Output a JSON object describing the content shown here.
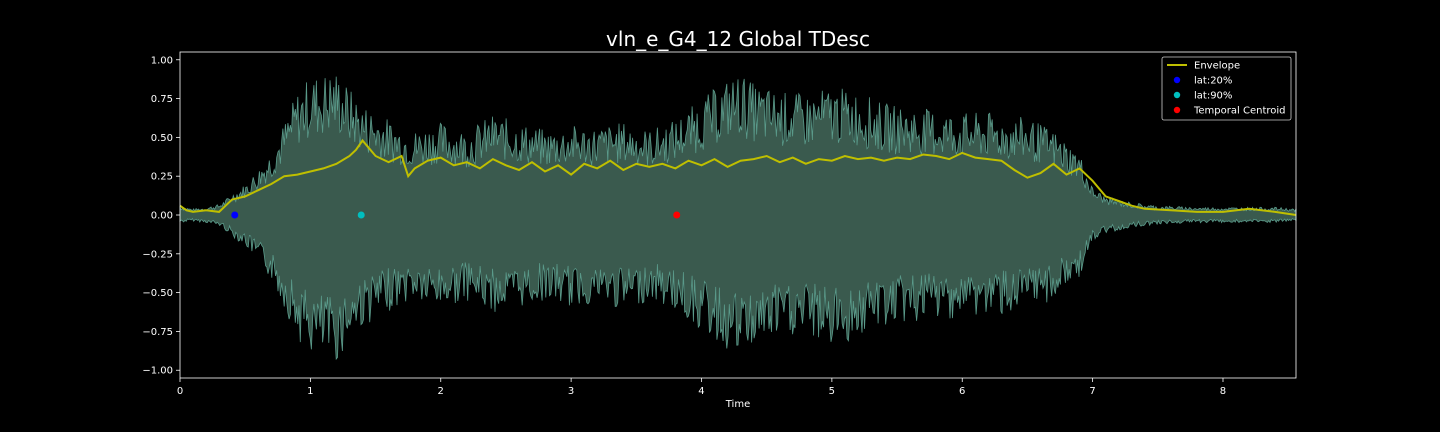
{
  "chart_data": {
    "type": "line",
    "title": "vln_e_G4_12 Global TDesc",
    "xlabel": "Time",
    "ylabel": "",
    "xlim": [
      0,
      8.56
    ],
    "ylim": [
      -1.05,
      1.05
    ],
    "x_ticks": [
      0,
      1,
      2,
      3,
      4,
      5,
      6,
      7,
      8
    ],
    "y_ticks": [
      1.0,
      0.75,
      0.5,
      0.25,
      0.0,
      -0.25,
      -0.5,
      -0.75,
      -1.0
    ],
    "x_tick_labels": [
      "0",
      "1",
      "2",
      "3",
      "4",
      "5",
      "6",
      "7",
      "8"
    ],
    "y_tick_labels": [
      "1.00",
      "0.75",
      "0.50",
      "0.25",
      "0.00",
      "−0.25",
      "−0.50",
      "−0.75",
      "−1.00"
    ],
    "grid": false,
    "legend_position": "top-right",
    "waveform": {
      "color": "#5a9a8a",
      "fill_color": "#3a5a4e",
      "t": [
        0,
        0.1,
        0.2,
        0.3,
        0.35,
        0.4,
        0.5,
        0.6,
        0.7,
        0.8,
        0.9,
        1.0,
        1.1,
        1.2,
        1.3,
        1.4,
        1.5,
        1.6,
        1.7,
        1.8,
        1.9,
        2.0,
        2.2,
        2.4,
        2.6,
        2.8,
        3.0,
        3.2,
        3.4,
        3.6,
        3.8,
        4.0,
        4.2,
        4.3,
        4.4,
        4.6,
        4.8,
        5.0,
        5.2,
        5.4,
        5.6,
        5.8,
        6.0,
        6.2,
        6.3,
        6.5,
        6.7,
        6.9,
        7.0,
        7.1,
        7.3,
        7.5,
        7.8,
        8.0,
        8.2,
        8.4,
        8.56
      ],
      "upper": [
        0.06,
        0.04,
        0.05,
        0.07,
        0.1,
        0.14,
        0.2,
        0.3,
        0.42,
        0.6,
        0.8,
        0.9,
        0.92,
        0.94,
        0.82,
        0.72,
        0.68,
        0.62,
        0.58,
        0.55,
        0.58,
        0.6,
        0.55,
        0.65,
        0.6,
        0.55,
        0.58,
        0.57,
        0.6,
        0.55,
        0.62,
        0.75,
        0.88,
        0.92,
        0.85,
        0.8,
        0.78,
        0.83,
        0.8,
        0.72,
        0.7,
        0.68,
        0.66,
        0.66,
        0.64,
        0.63,
        0.55,
        0.4,
        0.18,
        0.12,
        0.08,
        0.06,
        0.05,
        0.05,
        0.05,
        0.05,
        0.04
      ],
      "lower": [
        -0.05,
        -0.04,
        -0.05,
        -0.07,
        -0.1,
        -0.14,
        -0.2,
        -0.3,
        -0.42,
        -0.6,
        -0.8,
        -0.9,
        -0.93,
        -0.95,
        -0.82,
        -0.72,
        -0.68,
        -0.62,
        -0.58,
        -0.55,
        -0.6,
        -0.6,
        -0.55,
        -0.63,
        -0.6,
        -0.55,
        -0.6,
        -0.57,
        -0.62,
        -0.55,
        -0.62,
        -0.75,
        -0.88,
        -0.93,
        -0.85,
        -0.8,
        -0.78,
        -0.85,
        -0.8,
        -0.72,
        -0.7,
        -0.68,
        -0.66,
        -0.66,
        -0.64,
        -0.63,
        -0.55,
        -0.4,
        -0.18,
        -0.12,
        -0.08,
        -0.06,
        -0.05,
        -0.05,
        -0.05,
        -0.05,
        -0.04
      ]
    },
    "series": [
      {
        "name": "Envelope",
        "color": "#bfbf00",
        "x": [
          0,
          0.05,
          0.1,
          0.2,
          0.3,
          0.35,
          0.4,
          0.5,
          0.6,
          0.7,
          0.8,
          0.9,
          1.0,
          1.1,
          1.2,
          1.3,
          1.35,
          1.4,
          1.45,
          1.5,
          1.6,
          1.7,
          1.75,
          1.8,
          1.9,
          2.0,
          2.1,
          2.2,
          2.3,
          2.4,
          2.5,
          2.6,
          2.7,
          2.8,
          2.9,
          3.0,
          3.1,
          3.2,
          3.3,
          3.4,
          3.5,
          3.6,
          3.7,
          3.8,
          3.9,
          4.0,
          4.1,
          4.2,
          4.3,
          4.4,
          4.5,
          4.6,
          4.7,
          4.8,
          4.9,
          5.0,
          5.1,
          5.2,
          5.3,
          5.4,
          5.5,
          5.6,
          5.7,
          5.8,
          5.9,
          6.0,
          6.1,
          6.2,
          6.3,
          6.4,
          6.5,
          6.6,
          6.7,
          6.8,
          6.9,
          7.0,
          7.1,
          7.2,
          7.3,
          7.4,
          7.6,
          7.8,
          8.0,
          8.2,
          8.4,
          8.56
        ],
        "y": [
          0.06,
          0.03,
          0.02,
          0.03,
          0.02,
          0.06,
          0.1,
          0.12,
          0.16,
          0.2,
          0.25,
          0.26,
          0.28,
          0.3,
          0.33,
          0.38,
          0.42,
          0.48,
          0.43,
          0.38,
          0.34,
          0.38,
          0.25,
          0.3,
          0.35,
          0.37,
          0.32,
          0.34,
          0.3,
          0.36,
          0.32,
          0.29,
          0.34,
          0.28,
          0.32,
          0.26,
          0.33,
          0.3,
          0.35,
          0.29,
          0.33,
          0.31,
          0.33,
          0.3,
          0.35,
          0.32,
          0.36,
          0.31,
          0.35,
          0.36,
          0.38,
          0.34,
          0.37,
          0.33,
          0.36,
          0.35,
          0.38,
          0.36,
          0.37,
          0.35,
          0.37,
          0.36,
          0.39,
          0.38,
          0.36,
          0.4,
          0.37,
          0.36,
          0.35,
          0.29,
          0.24,
          0.27,
          0.33,
          0.26,
          0.3,
          0.22,
          0.12,
          0.09,
          0.06,
          0.04,
          0.03,
          0.02,
          0.02,
          0.04,
          0.02,
          0.0
        ]
      },
      {
        "name": "lat:20%",
        "color": "#0000ff",
        "x": [
          0.42
        ],
        "y": [
          0.0
        ]
      },
      {
        "name": "lat:90%",
        "color": "#00bfbf",
        "x": [
          1.39
        ],
        "y": [
          0.0
        ]
      },
      {
        "name": "Temporal Centroid",
        "color": "#ff0000",
        "x": [
          3.81
        ],
        "y": [
          0.0
        ]
      }
    ]
  }
}
